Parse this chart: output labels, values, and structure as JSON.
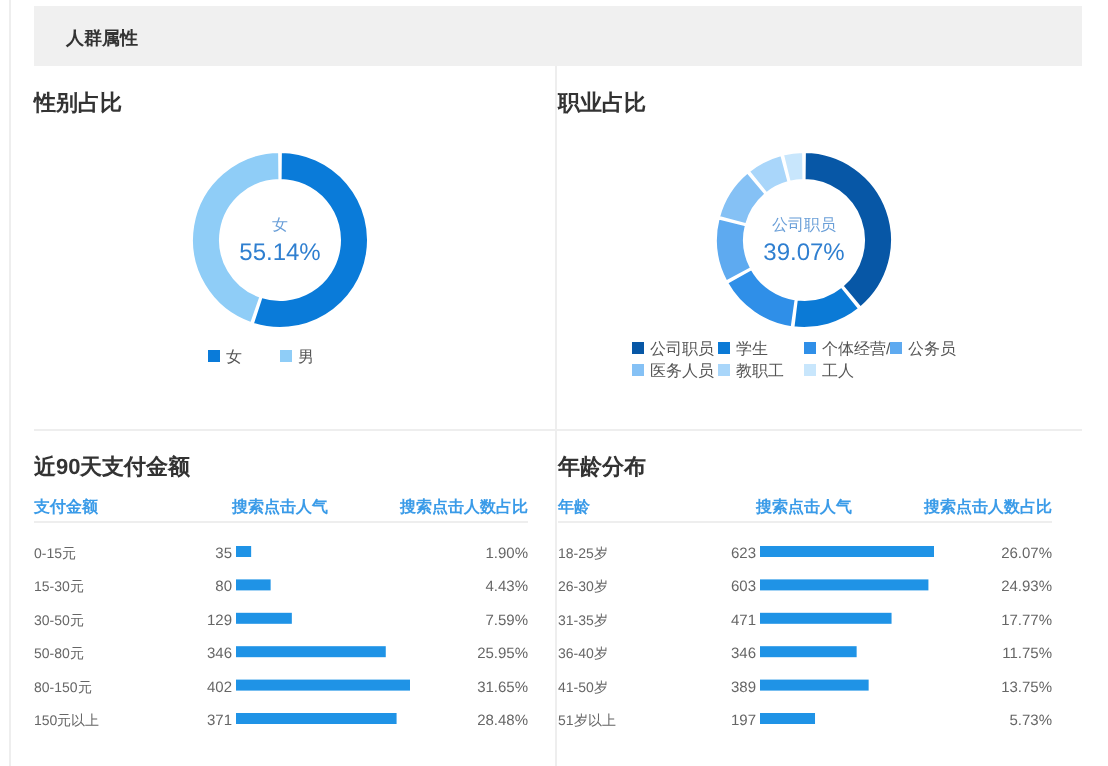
{
  "chart_data": [
    {
      "type": "donut",
      "title": "性别占比",
      "annotations": [
        "人群属性"
      ],
      "categories": [
        "女",
        "男"
      ],
      "values": [
        55.14,
        44.86
      ],
      "colors": [
        "#0a7bd9",
        "#8fcdf7"
      ],
      "value_labels": [
        "55.14%",
        null
      ],
      "legend": "bottom"
    },
    {
      "type": "donut",
      "title": "职业占比",
      "categories": [
        "公司职员",
        "学生",
        "个体经营/",
        "公务员",
        "医务人员",
        "教职工",
        "工人"
      ],
      "values": [
        39.07,
        13,
        15,
        12,
        10,
        6.93,
        4
      ],
      "colors": [
        "#0757a6",
        "#0b7ad6",
        "#2f8fe8",
        "#5eaaf0",
        "#85c1f5",
        "#a9d6fa",
        "#c8e6fc"
      ],
      "value_labels": [
        "39.07%",
        null,
        null,
        null,
        null,
        null,
        null
      ],
      "legend": "bottom"
    },
    {
      "type": "bar",
      "orientation": "horizontal",
      "title": "近90天支付金额",
      "ylabel": "支付金额",
      "xlabel": "搜索点击人气",
      "categories": [
        "0-15元",
        "15-30元",
        "30-50元",
        "50-80元",
        "80-150元",
        "150元以上"
      ],
      "values": [
        35,
        80,
        129,
        346,
        402,
        371
      ],
      "color": "#1f93e6",
      "data_labels": true,
      "annotations": [
        "搜索点击人数占比",
        "1.90%",
        "4.43%",
        "7.59%",
        "25.95%",
        "31.65%",
        "28.48%"
      ]
    },
    {
      "type": "bar",
      "orientation": "horizontal",
      "title": "年龄分布",
      "ylabel": "年龄",
      "xlabel": "搜索点击人气",
      "categories": [
        "18-25岁",
        "26-30岁",
        "31-35岁",
        "36-40岁",
        "41-50岁",
        "51岁以上"
      ],
      "values": [
        623,
        603,
        471,
        346,
        389,
        197
      ],
      "color": "#1f93e6",
      "data_labels": true,
      "annotations": [
        "搜索点击人数占比",
        "26.07%",
        "24.93%",
        "17.77%",
        "11.75%",
        "13.75%",
        "5.73%"
      ]
    }
  ]
}
